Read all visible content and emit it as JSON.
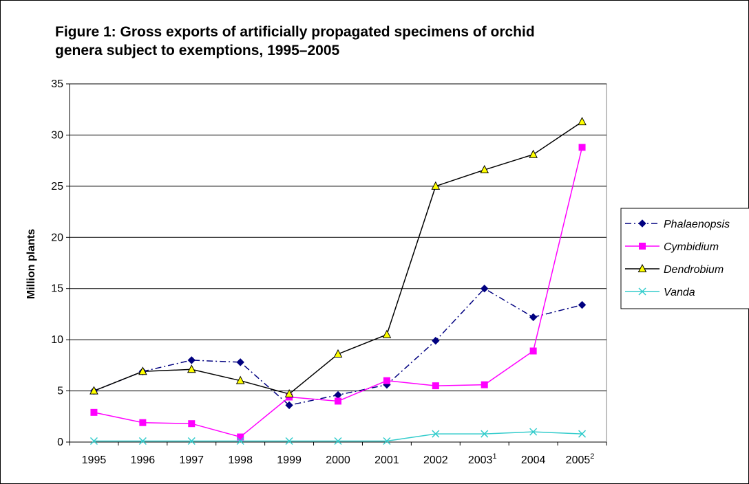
{
  "chart_data": {
    "type": "line",
    "title": "Figure 1: Gross exports of artificially propagated specimens of orchid genera subject to exemptions, 1995–2005",
    "title_lines": [
      "Figure 1: Gross exports of artificially propagated specimens of orchid",
      "genera subject to exemptions, 1995–2005"
    ],
    "xlabel": "",
    "ylabel": "Million plants",
    "categories": [
      "1995",
      "1996",
      "1997",
      "1998",
      "1999",
      "2000",
      "2001",
      "2002",
      "2003",
      "2004",
      "2005"
    ],
    "category_superscripts": [
      "",
      "",
      "",
      "",
      "",
      "",
      "",
      "",
      "1",
      "",
      "2"
    ],
    "ylim": [
      0,
      35
    ],
    "yticks": [
      "0",
      "5",
      "10",
      "15",
      "20",
      "25",
      "30",
      "35"
    ],
    "grid": true,
    "legend_position": "right",
    "series": [
      {
        "name": "Phalaenopsis",
        "color": "#000080",
        "marker": "diamond",
        "line_style": "dash-dot",
        "values": [
          5.0,
          6.9,
          8.0,
          7.8,
          3.6,
          4.6,
          5.6,
          9.9,
          15.0,
          12.2,
          13.4
        ]
      },
      {
        "name": "Cymbidium",
        "color": "#ff00ff",
        "marker": "square",
        "line_style": "solid",
        "values": [
          2.9,
          1.9,
          1.8,
          0.5,
          4.4,
          4.0,
          6.0,
          5.5,
          5.6,
          8.9,
          28.8
        ]
      },
      {
        "name": "Dendrobium",
        "color": "#000000",
        "marker": "triangle",
        "marker_fill": "#ffff00",
        "line_style": "solid",
        "values": [
          5.0,
          6.9,
          7.1,
          6.0,
          4.7,
          8.6,
          10.5,
          25.0,
          26.6,
          28.1,
          31.3
        ]
      },
      {
        "name": "Vanda",
        "color": "#33cccc",
        "marker": "x",
        "line_style": "solid",
        "values": [
          0.1,
          0.1,
          0.1,
          0.1,
          0.1,
          0.1,
          0.1,
          0.8,
          0.8,
          1.0,
          0.8
        ]
      }
    ]
  }
}
